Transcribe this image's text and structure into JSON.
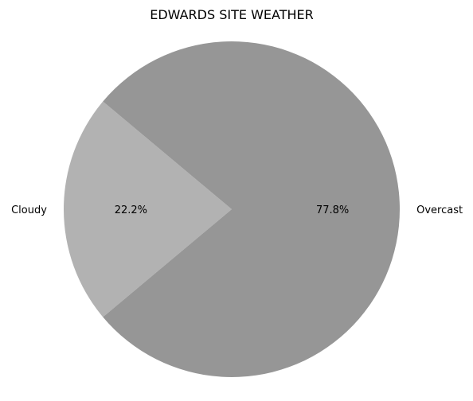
{
  "chart_data": {
    "type": "pie",
    "title": "EDWARDS SITE WEATHER",
    "slices": [
      {
        "label": "Cloudy",
        "value": 22.2,
        "pct_label": "22.2%",
        "color": "#b2b2b2"
      },
      {
        "label": "Overcast",
        "value": 77.8,
        "pct_label": "77.8%",
        "color": "#969696"
      }
    ]
  }
}
